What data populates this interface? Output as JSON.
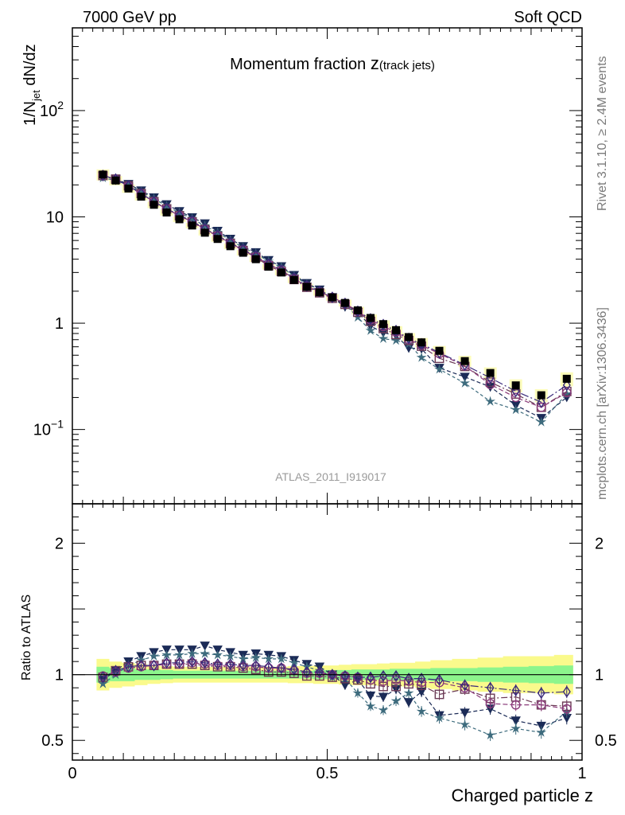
{
  "header": {
    "left": "7000 GeV pp",
    "right": "Soft QCD"
  },
  "side_labels": {
    "rivet": "Rivet 3.1.10, ≥ 2.4M events",
    "mcplots": "mcplots.cern.ch [arXiv:1306.3436]"
  },
  "watermark": "ATLAS_2011_I919017",
  "chart_data": {
    "type": "scatter",
    "title": {
      "main": "Momentum fraction ",
      "var": "z",
      "sub": "(track jets)"
    },
    "xlabel": "Charged particle z",
    "xlim": [
      0,
      1
    ],
    "xticks": [
      {
        "v": 0,
        "label": "0"
      },
      {
        "v": 0.5,
        "label": "0.5"
      },
      {
        "v": 1,
        "label": "1"
      }
    ],
    "main_panel": {
      "ylabel": {
        "pre": "1/N",
        "sub": "jet",
        "post": " dN/dz"
      },
      "yscale": "log",
      "ylim": [
        0.02,
        600
      ],
      "yticks": [
        {
          "v": 100,
          "base": "10",
          "exp": "2"
        },
        {
          "v": 10,
          "base": "10",
          "exp": ""
        },
        {
          "v": 1,
          "base": "1",
          "exp": ""
        },
        {
          "v": 0.1,
          "base": "10",
          "exp": "−1"
        }
      ]
    },
    "ratio_panel": {
      "ylabel": "Ratio to ATLAS",
      "ylim": [
        0.35,
        2.3
      ],
      "yticks": [
        {
          "v": 0.5,
          "label": "0.5"
        },
        {
          "v": 1,
          "label": "1"
        },
        {
          "v": 2,
          "label": "2"
        }
      ]
    },
    "x": [
      0.06,
      0.085,
      0.11,
      0.135,
      0.16,
      0.185,
      0.21,
      0.235,
      0.26,
      0.285,
      0.31,
      0.335,
      0.36,
      0.385,
      0.41,
      0.435,
      0.46,
      0.485,
      0.51,
      0.535,
      0.56,
      0.585,
      0.61,
      0.635,
      0.66,
      0.685,
      0.72,
      0.77,
      0.82,
      0.87,
      0.92,
      0.97
    ],
    "data": {
      "name": "ATLAS",
      "values": [
        25,
        22,
        18.5,
        15.5,
        13,
        11,
        9.5,
        8.3,
        7.1,
        6.2,
        5.3,
        4.6,
        4.0,
        3.4,
        3.0,
        2.55,
        2.2,
        1.95,
        1.75,
        1.55,
        1.32,
        1.12,
        0.98,
        0.86,
        0.74,
        0.66,
        0.55,
        0.44,
        0.34,
        0.26,
        0.21,
        0.3
      ]
    },
    "band": {
      "inner_halfwidth": [
        0.06,
        0.05,
        0.05,
        0.04,
        0.04,
        0.035,
        0.03,
        0.03,
        0.03,
        0.03,
        0.03,
        0.03,
        0.03,
        0.03,
        0.03,
        0.03,
        0.03,
        0.035,
        0.035,
        0.035,
        0.04,
        0.04,
        0.04,
        0.045,
        0.045,
        0.045,
        0.05,
        0.05,
        0.055,
        0.06,
        0.065,
        0.07
      ],
      "outer_halfwidth": [
        0.12,
        0.1,
        0.09,
        0.08,
        0.07,
        0.065,
        0.06,
        0.06,
        0.06,
        0.06,
        0.06,
        0.06,
        0.06,
        0.06,
        0.06,
        0.065,
        0.065,
        0.07,
        0.07,
        0.075,
        0.08,
        0.08,
        0.085,
        0.09,
        0.09,
        0.1,
        0.11,
        0.12,
        0.13,
        0.14,
        0.14,
        0.15
      ]
    },
    "series": [
      {
        "marker": "triangle-down",
        "color": "#1b2b57",
        "dash": "5,3",
        "ratio": [
          0.96,
          1.03,
          1.1,
          1.14,
          1.17,
          1.19,
          1.19,
          1.19,
          1.22,
          1.19,
          1.17,
          1.15,
          1.16,
          1.15,
          1.14,
          1.11,
          1.08,
          1.06,
          1.0,
          0.92,
          0.96,
          0.84,
          0.83,
          0.89,
          0.79,
          0.87,
          0.69,
          0.71,
          0.74,
          0.65,
          0.61,
          0.67
        ]
      },
      {
        "marker": "star",
        "color": "#3d6b7d",
        "dash": "4,3",
        "ratio": [
          0.93,
          1.0,
          1.07,
          1.11,
          1.14,
          1.15,
          1.15,
          1.16,
          1.16,
          1.15,
          1.14,
          1.12,
          1.13,
          1.12,
          1.12,
          1.09,
          1.06,
          1.03,
          0.98,
          0.97,
          0.86,
          0.76,
          0.73,
          0.8,
          0.86,
          0.72,
          0.67,
          0.62,
          0.54,
          0.59,
          0.56,
          0.72
        ]
      },
      {
        "marker": "square",
        "color": "#6b3a55",
        "dash": "8,3,2,3",
        "ratio": [
          0.98,
          1.03,
          1.06,
          1.07,
          1.07,
          1.08,
          1.08,
          1.08,
          1.07,
          1.06,
          1.06,
          1.05,
          1.04,
          1.02,
          1.02,
          1.01,
          0.99,
          0.99,
          0.98,
          0.97,
          0.96,
          0.93,
          0.91,
          0.91,
          0.93,
          0.92,
          0.85,
          0.89,
          0.82,
          0.83,
          0.77,
          0.76
        ]
      },
      {
        "marker": "circle",
        "color": "#8a3a7a",
        "dash": "6,3",
        "ratio": [
          0.99,
          1.02,
          1.05,
          1.06,
          1.07,
          1.08,
          1.08,
          1.09,
          1.08,
          1.07,
          1.07,
          1.06,
          1.06,
          1.05,
          1.05,
          1.03,
          1.01,
          1.01,
          1.0,
          0.99,
          0.98,
          0.96,
          0.95,
          0.96,
          0.95,
          0.94,
          0.94,
          0.9,
          0.78,
          0.77,
          0.77,
          0.74
        ]
      },
      {
        "marker": "diamond",
        "color": "#3a2a7a",
        "dash": "10,3,2,3",
        "ratio": [
          0.98,
          1.03,
          1.06,
          1.07,
          1.07,
          1.09,
          1.09,
          1.1,
          1.09,
          1.08,
          1.08,
          1.07,
          1.07,
          1.06,
          1.05,
          1.04,
          1.02,
          1.02,
          1.0,
          0.99,
          0.98,
          0.98,
          0.99,
          0.99,
          0.97,
          0.97,
          0.96,
          0.92,
          0.9,
          0.88,
          0.86,
          0.87
        ]
      }
    ],
    "ref_line": 1
  }
}
